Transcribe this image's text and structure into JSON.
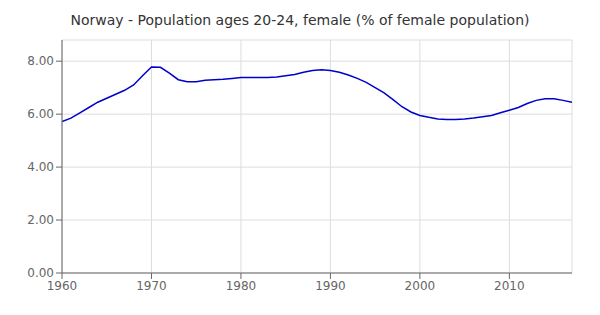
{
  "chart_data": {
    "type": "line",
    "title": "Norway - Population ages 20-24, female (% of female population)",
    "x": [
      1960,
      1961,
      1962,
      1963,
      1964,
      1965,
      1966,
      1967,
      1968,
      1969,
      1970,
      1971,
      1972,
      1973,
      1974,
      1975,
      1976,
      1977,
      1978,
      1979,
      1980,
      1981,
      1982,
      1983,
      1984,
      1985,
      1986,
      1987,
      1988,
      1989,
      1990,
      1991,
      1992,
      1993,
      1994,
      1995,
      1996,
      1997,
      1998,
      1999,
      2000,
      2001,
      2002,
      2003,
      2004,
      2005,
      2006,
      2007,
      2008,
      2009,
      2010,
      2011,
      2012,
      2013,
      2014,
      2015,
      2016,
      2017
    ],
    "values": [
      5.72,
      5.85,
      6.05,
      6.25,
      6.45,
      6.6,
      6.75,
      6.9,
      7.1,
      7.45,
      7.78,
      7.77,
      7.55,
      7.3,
      7.22,
      7.22,
      7.28,
      7.3,
      7.32,
      7.35,
      7.38,
      7.38,
      7.38,
      7.38,
      7.4,
      7.45,
      7.5,
      7.58,
      7.65,
      7.68,
      7.65,
      7.58,
      7.48,
      7.35,
      7.2,
      7.0,
      6.8,
      6.55,
      6.28,
      6.08,
      5.95,
      5.88,
      5.82,
      5.8,
      5.8,
      5.82,
      5.85,
      5.9,
      5.95,
      6.05,
      6.15,
      6.25,
      6.4,
      6.52,
      6.58,
      6.58,
      6.52,
      6.45
    ],
    "color": "#0000cc",
    "xlim": [
      1960,
      2017
    ],
    "ylim": [
      0.0,
      8.8
    ],
    "xticks": [
      1960,
      1970,
      1980,
      1990,
      2000,
      2010
    ],
    "yticks": [
      {
        "value": 0.0,
        "label": "0.00"
      },
      {
        "value": 2.0,
        "label": "2.00"
      },
      {
        "value": 4.0,
        "label": "4.00"
      },
      {
        "value": 6.0,
        "label": "6.00"
      },
      {
        "value": 8.0,
        "label": "8.00"
      }
    ],
    "grid": true
  }
}
